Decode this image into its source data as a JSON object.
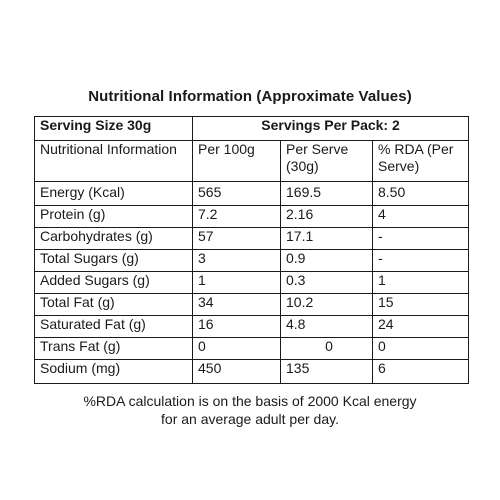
{
  "title": "Nutritional Information (Approximate Values)",
  "header": {
    "serving_size": "Serving Size 30g",
    "servings_per_pack": "Servings Per Pack: 2"
  },
  "columns": {
    "nutrient": "Nutritional Information",
    "per_100g": "Per 100g",
    "per_serve": "Per Serve (30g)",
    "rda": "% RDA (Per Serve)"
  },
  "rows": [
    {
      "name": "Energy (Kcal)",
      "per_100g": "565",
      "per_serve": "169.5",
      "rda": "8.50"
    },
    {
      "name": "Protein (g)",
      "per_100g": "7.2",
      "per_serve": "2.16",
      "rda": "4"
    },
    {
      "name": "Carbohydrates (g)",
      "per_100g": "57",
      "per_serve": "17.1",
      "rda": "-"
    },
    {
      "name": "Total Sugars (g)",
      "per_100g": "3",
      "per_serve": "0.9",
      "rda": "-"
    },
    {
      "name": "Added Sugars (g)",
      "per_100g": "1",
      "per_serve": "0.3",
      "rda": "1"
    },
    {
      "name": "Total Fat (g)",
      "per_100g": "34",
      "per_serve": "10.2",
      "rda": "15"
    },
    {
      "name": "Saturated Fat (g)",
      "per_100g": "16",
      "per_serve": "4.8",
      "rda": "24"
    },
    {
      "name": "Trans Fat (g)",
      "per_100g": "0",
      "per_serve": "0",
      "rda": "0"
    },
    {
      "name": "Sodium (mg)",
      "per_100g": "450",
      "per_serve": "135",
      "rda": "6"
    }
  ],
  "footnote": {
    "line1": "%RDA calculation is on the basis of 2000 Kcal energy",
    "line2": "for an average adult per day."
  }
}
